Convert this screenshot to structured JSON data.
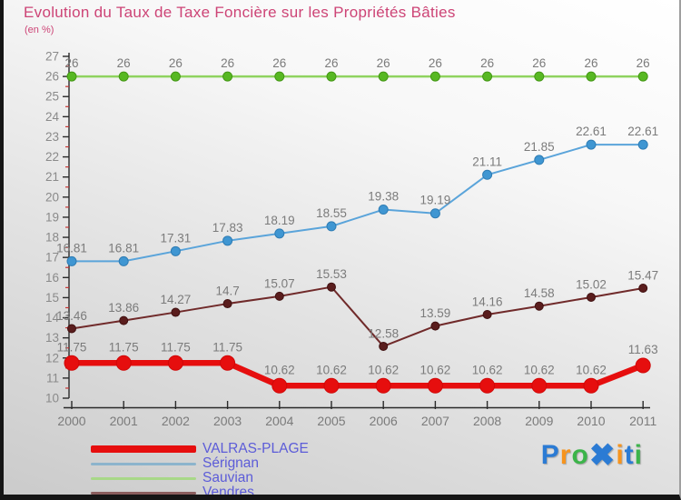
{
  "chart_data": {
    "type": "line",
    "title": "Evolution du Taux de Taxe Foncière sur les Propriétés Bâties",
    "subtitle": "(en %)",
    "categories": [
      "2000",
      "2001",
      "2002",
      "2003",
      "2004",
      "2005",
      "2006",
      "2007",
      "2008",
      "2009",
      "2010",
      "2011"
    ],
    "xlabel": "",
    "ylabel": "",
    "ylim": [
      10,
      27
    ],
    "y_tick_step": 1,
    "grid": false,
    "legend_position": "bottom-left",
    "series": [
      {
        "name": "VALRAS-PLAGE",
        "color": "#e60e0e",
        "line_width": 6.5,
        "point_radius": 8,
        "point_fill": "#e60e0e",
        "point_stroke": "#d00808",
        "values": [
          11.75,
          11.75,
          11.75,
          11.75,
          10.62,
          10.62,
          10.62,
          10.62,
          10.62,
          10.62,
          10.62,
          11.63
        ]
      },
      {
        "name": "Sérignan",
        "color": "#5aa4da",
        "line_width": 2,
        "point_radius": 5,
        "point_fill": "#3f96d2",
        "point_stroke": "#2e7cb4",
        "values": [
          16.81,
          16.81,
          17.31,
          17.83,
          18.19,
          18.55,
          19.38,
          19.19,
          21.11,
          21.85,
          22.61,
          22.61
        ]
      },
      {
        "name": "Sauvian",
        "color": "#8fd35f",
        "line_width": 2.5,
        "point_radius": 5,
        "point_fill": "#57b822",
        "point_stroke": "#439614",
        "values": [
          26,
          26,
          26,
          26,
          26,
          26,
          26,
          26,
          26,
          26,
          26,
          26
        ]
      },
      {
        "name": "Vendres",
        "color": "#702a2a",
        "line_width": 2,
        "point_radius": 4.5,
        "point_fill": "#5a1d1d",
        "point_stroke": "#401010",
        "values": [
          13.46,
          13.86,
          14.27,
          14.7,
          15.07,
          15.53,
          12.58,
          13.59,
          14.16,
          14.58,
          15.02,
          15.47
        ]
      }
    ],
    "colors": {
      "title": "#cd4476",
      "data_label": "#7b7b7b",
      "axis_tick_label": "#8a8a8a",
      "axis_line": "#2a2a2a",
      "minor_tick": "#c43333"
    }
  },
  "legend": {
    "text_color": "#5c5cd8",
    "items": [
      {
        "label": "VALRAS-PLAGE",
        "swatch_color": "#e60e0e",
        "thick": true
      },
      {
        "label": "Sérignan",
        "swatch_color": "#8cb4cc",
        "thick": false
      },
      {
        "label": "Sauvian",
        "swatch_color": "#a8d888",
        "thick": false
      },
      {
        "label": "Vendres",
        "swatch_color": "#8a5d5d",
        "thick": false
      }
    ]
  },
  "logo": {
    "name": "Proxiti",
    "letters": [
      {
        "ch": "P",
        "color": "#2b7bd4",
        "big": false
      },
      {
        "ch": "r",
        "color": "#f7941d",
        "big": false
      },
      {
        "ch": "o",
        "color": "#3cb44a",
        "big": false
      },
      {
        "ch": "✖",
        "color": "#2b7bd4",
        "big": true
      },
      {
        "ch": "i",
        "color": "#f7941d",
        "big": false
      },
      {
        "ch": "t",
        "color": "#2b7bd4",
        "big": false
      },
      {
        "ch": "i",
        "color": "#3cb44a",
        "big": false
      }
    ]
  }
}
